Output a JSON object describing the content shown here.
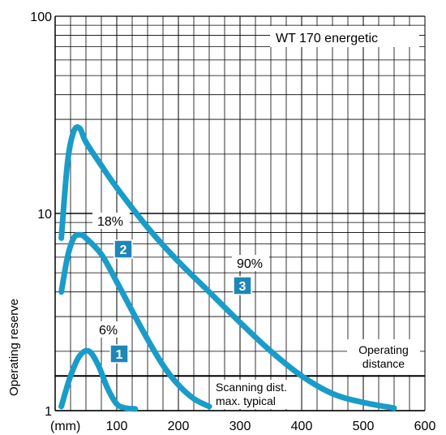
{
  "chart_data": {
    "type": "line",
    "title": "WT 170 energetic",
    "xlabel": "(mm)",
    "ylabel": "Operating reserve",
    "xlim": [
      0,
      600
    ],
    "ylim": [
      1,
      100
    ],
    "y_scale": "log",
    "grid": true,
    "x_ticks": [
      100,
      200,
      300,
      400,
      500,
      600
    ],
    "x_tick_labels": [
      "100",
      "200",
      "300",
      "400",
      "500",
      "600"
    ],
    "y_ticks": [
      1,
      10,
      100
    ],
    "y_tick_labels": [
      "1",
      "10",
      "100"
    ],
    "colors": {
      "curve": "#1a9cc9",
      "badge": "#1f86b8",
      "grid": "#000000"
    },
    "series": [
      {
        "percent_label": "6%",
        "badge": "1",
        "x": [
          10,
          25,
          40,
          55,
          70,
          85,
          100,
          115,
          130
        ],
        "y": [
          1.05,
          1.5,
          1.9,
          2.0,
          1.7,
          1.3,
          1.08,
          1.03,
          1.02
        ]
      },
      {
        "percent_label": "18%",
        "badge": "2",
        "x": [
          10,
          20,
          30,
          40,
          50,
          75,
          100,
          125,
          150,
          175,
          200,
          225,
          250
        ],
        "y": [
          4.0,
          6.0,
          7.5,
          7.8,
          7.5,
          6.2,
          4.5,
          3.2,
          2.3,
          1.7,
          1.35,
          1.15,
          1.05
        ]
      },
      {
        "percent_label": "90%",
        "badge": "3",
        "x": [
          10,
          20,
          30,
          40,
          50,
          75,
          100,
          150,
          200,
          250,
          300,
          350,
          400,
          450,
          500,
          550
        ],
        "y": [
          7.5,
          18,
          26,
          27,
          23,
          17.5,
          13.5,
          8.5,
          5.7,
          4.0,
          2.8,
          2.0,
          1.5,
          1.22,
          1.1,
          1.03
        ]
      }
    ],
    "reference_line": {
      "y": 1.5,
      "label_top": "Operating distance",
      "label_bottom": "Scanning dist. max. typical"
    }
  }
}
